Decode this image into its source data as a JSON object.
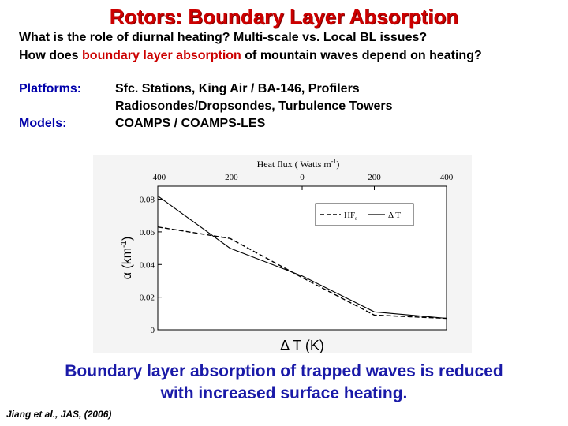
{
  "slide": {
    "title": "Rotors:  Boundary Layer Absorption",
    "question1": "What is the role of diurnal heating?  Multi-scale vs. Local BL issues?",
    "question2_pre": "How does ",
    "question2_highlight": "boundary layer absorption",
    "question2_post": " of mountain waves depend on heating?",
    "platforms_label": "Platforms:",
    "platforms_line1": "Sfc. Stations, King Air / BA-146, Profilers",
    "platforms_line2": "Radiosondes/Dropsondes, Turbulence Towers",
    "models_label": "Models:",
    "models_value": "COAMPS / COAMPS-LES",
    "conclusion_line1": "Boundary layer absorption of trapped waves is reduced",
    "conclusion_line2": "with increased surface heating.",
    "citation": "Jiang et al., JAS, (2006)"
  },
  "colors": {
    "title": "#cc0000",
    "highlight": "#cc0000",
    "label_blue": "#0000aa",
    "conclusion_blue": "#1a1aa8",
    "plot_background": "#ffffff",
    "figure_background": "#f4f4f4"
  },
  "chart_data": {
    "type": "line",
    "top_axis_label": "Heat flux ( Watts m",
    "top_axis_label_sup": "-1",
    "top_axis_label_end": ")",
    "top_ticks": [
      "-400",
      "-200",
      "0",
      "200",
      "400"
    ],
    "top_tick_values": [
      -400,
      -200,
      0,
      200,
      400
    ],
    "xlabel": "Δ T (K)",
    "ylabel": "α (km",
    "ylabel_sup": "-1",
    "ylabel_end": ")",
    "yticks": [
      "0",
      "0.02",
      "0.04",
      "0.06",
      "0.08"
    ],
    "ytick_values": [
      0,
      0.02,
      0.04,
      0.06,
      0.08
    ],
    "ylim": [
      0,
      0.088
    ],
    "xlim": [
      -400,
      400
    ],
    "legend_position": "top-right",
    "series": [
      {
        "name": "HF",
        "name_sub": "s",
        "style": "dashed",
        "x": [
          -400,
          -200,
          0,
          200,
          300,
          400
        ],
        "y": [
          0.063,
          0.056,
          0.032,
          0.009,
          0.008,
          0.007
        ]
      },
      {
        "name": "Δ T",
        "style": "solid",
        "x": [
          -400,
          -200,
          0,
          200,
          300,
          400
        ],
        "y": [
          0.082,
          0.05,
          0.033,
          0.011,
          0.009,
          0.007
        ]
      }
    ]
  }
}
